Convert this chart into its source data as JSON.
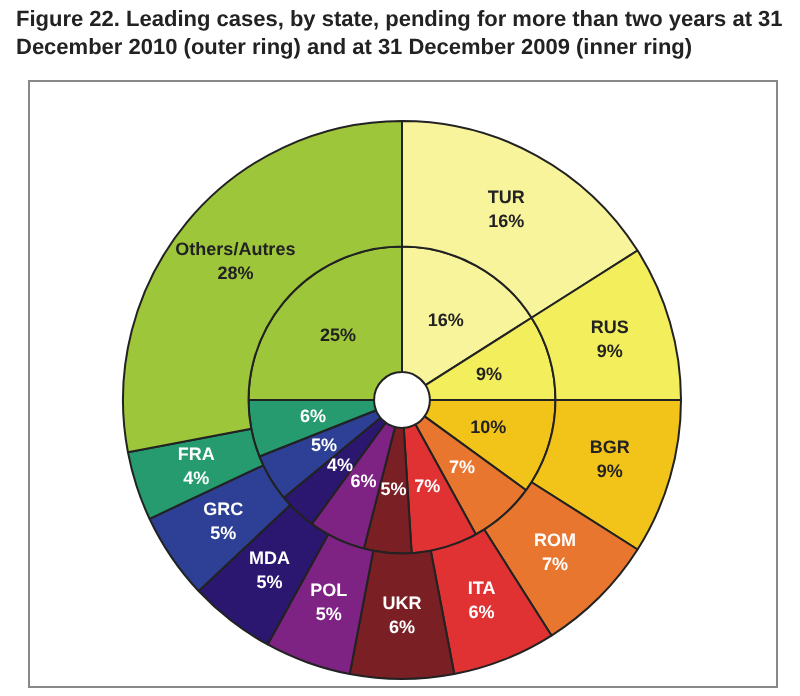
{
  "chart_data": {
    "type": "donut",
    "title": "Figure 22. Leading cases, by state, pending for more than two years at 31 December 2010 (outer ring) and at 31 December 2009 (inner ring)",
    "categories": [
      "TUR",
      "RUS",
      "BGR",
      "ROM",
      "ITA",
      "UKR",
      "POL",
      "MDA",
      "GRC",
      "FRA",
      "Others/Autres"
    ],
    "colors": [
      "#f8f49c",
      "#f2ee5c",
      "#f2c41a",
      "#e9762f",
      "#e03232",
      "#7a1f24",
      "#7e2384",
      "#2b1670",
      "#2d4095",
      "#259b6f",
      "#9dc63b"
    ],
    "series": [
      {
        "values": [
          16,
          9,
          9,
          7,
          6,
          6,
          5,
          5,
          5,
          4,
          28
        ],
        "value_labels": [
          "16%",
          "9%",
          "9%",
          "7%",
          "6%",
          "6%",
          "5%",
          "5%",
          "5%",
          "4%",
          "28%"
        ]
      },
      {
        "values": [
          16,
          9,
          10,
          7,
          7,
          5,
          6,
          4,
          5,
          6,
          25
        ],
        "value_labels": [
          "16%",
          "9%",
          "10%",
          "7%",
          "7%",
          "5%",
          "6%",
          "4%",
          "5%",
          "6%",
          "25%"
        ]
      }
    ],
    "data_labels": true,
    "legend": false
  }
}
